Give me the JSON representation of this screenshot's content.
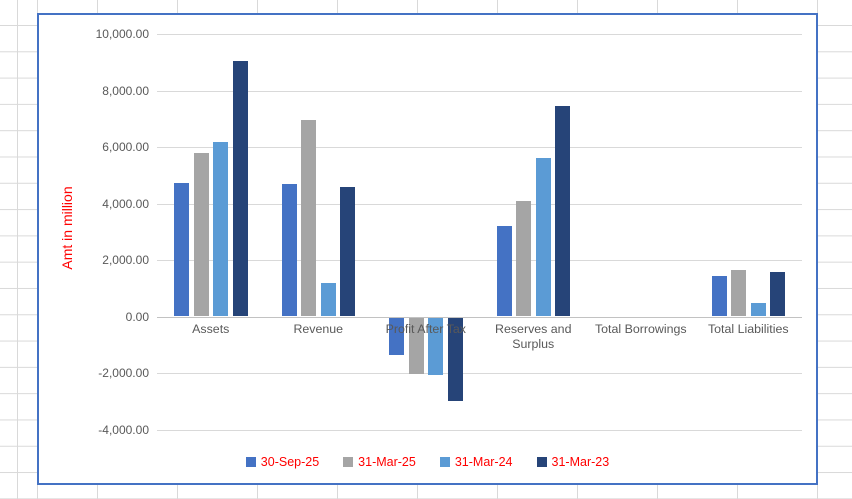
{
  "chart_data": {
    "type": "bar",
    "title": "",
    "ylabel": "Amt in million",
    "xlabel": "",
    "categories": [
      "Assets",
      "Revenue",
      "Profit After Tax",
      "Reserves and Surplus",
      "Total Borrowings",
      "Total Liabilities"
    ],
    "series": [
      {
        "name": "30-Sep-25",
        "color": "#4472C4",
        "values": [
          4720,
          4700,
          -1330,
          3200,
          0,
          1420
        ]
      },
      {
        "name": "31-Mar-25",
        "color": "#A5A5A5",
        "values": [
          5780,
          6970,
          -2000,
          4100,
          0,
          1660
        ]
      },
      {
        "name": "31-Mar-24",
        "color": "#5B9BD5",
        "values": [
          6170,
          1170,
          -2050,
          5600,
          0,
          470
        ]
      },
      {
        "name": "31-Mar-23",
        "color": "#264478",
        "values": [
          9050,
          4600,
          -2950,
          7450,
          0,
          1570
        ]
      }
    ],
    "ylim": [
      -4000,
      10000
    ],
    "ytick_step": 2000,
    "ytick_labels": [
      "-4,000.00",
      "-2,000.00",
      "0.00",
      "2,000.00",
      "4,000.00",
      "6,000.00",
      "8,000.00",
      "10,000.00"
    ],
    "grid": true,
    "legend_position": "bottom",
    "styles": {
      "ylabel_color": "#FF0000",
      "legend_text_color": "#FF0000",
      "axis_text_color": "#595959",
      "gridline_color": "#D9D9D9",
      "zero_axis_color": "#C2C2C2",
      "chart_border_color": "#4472C4",
      "sheet_gridline_color": "#D9D9D9"
    }
  }
}
